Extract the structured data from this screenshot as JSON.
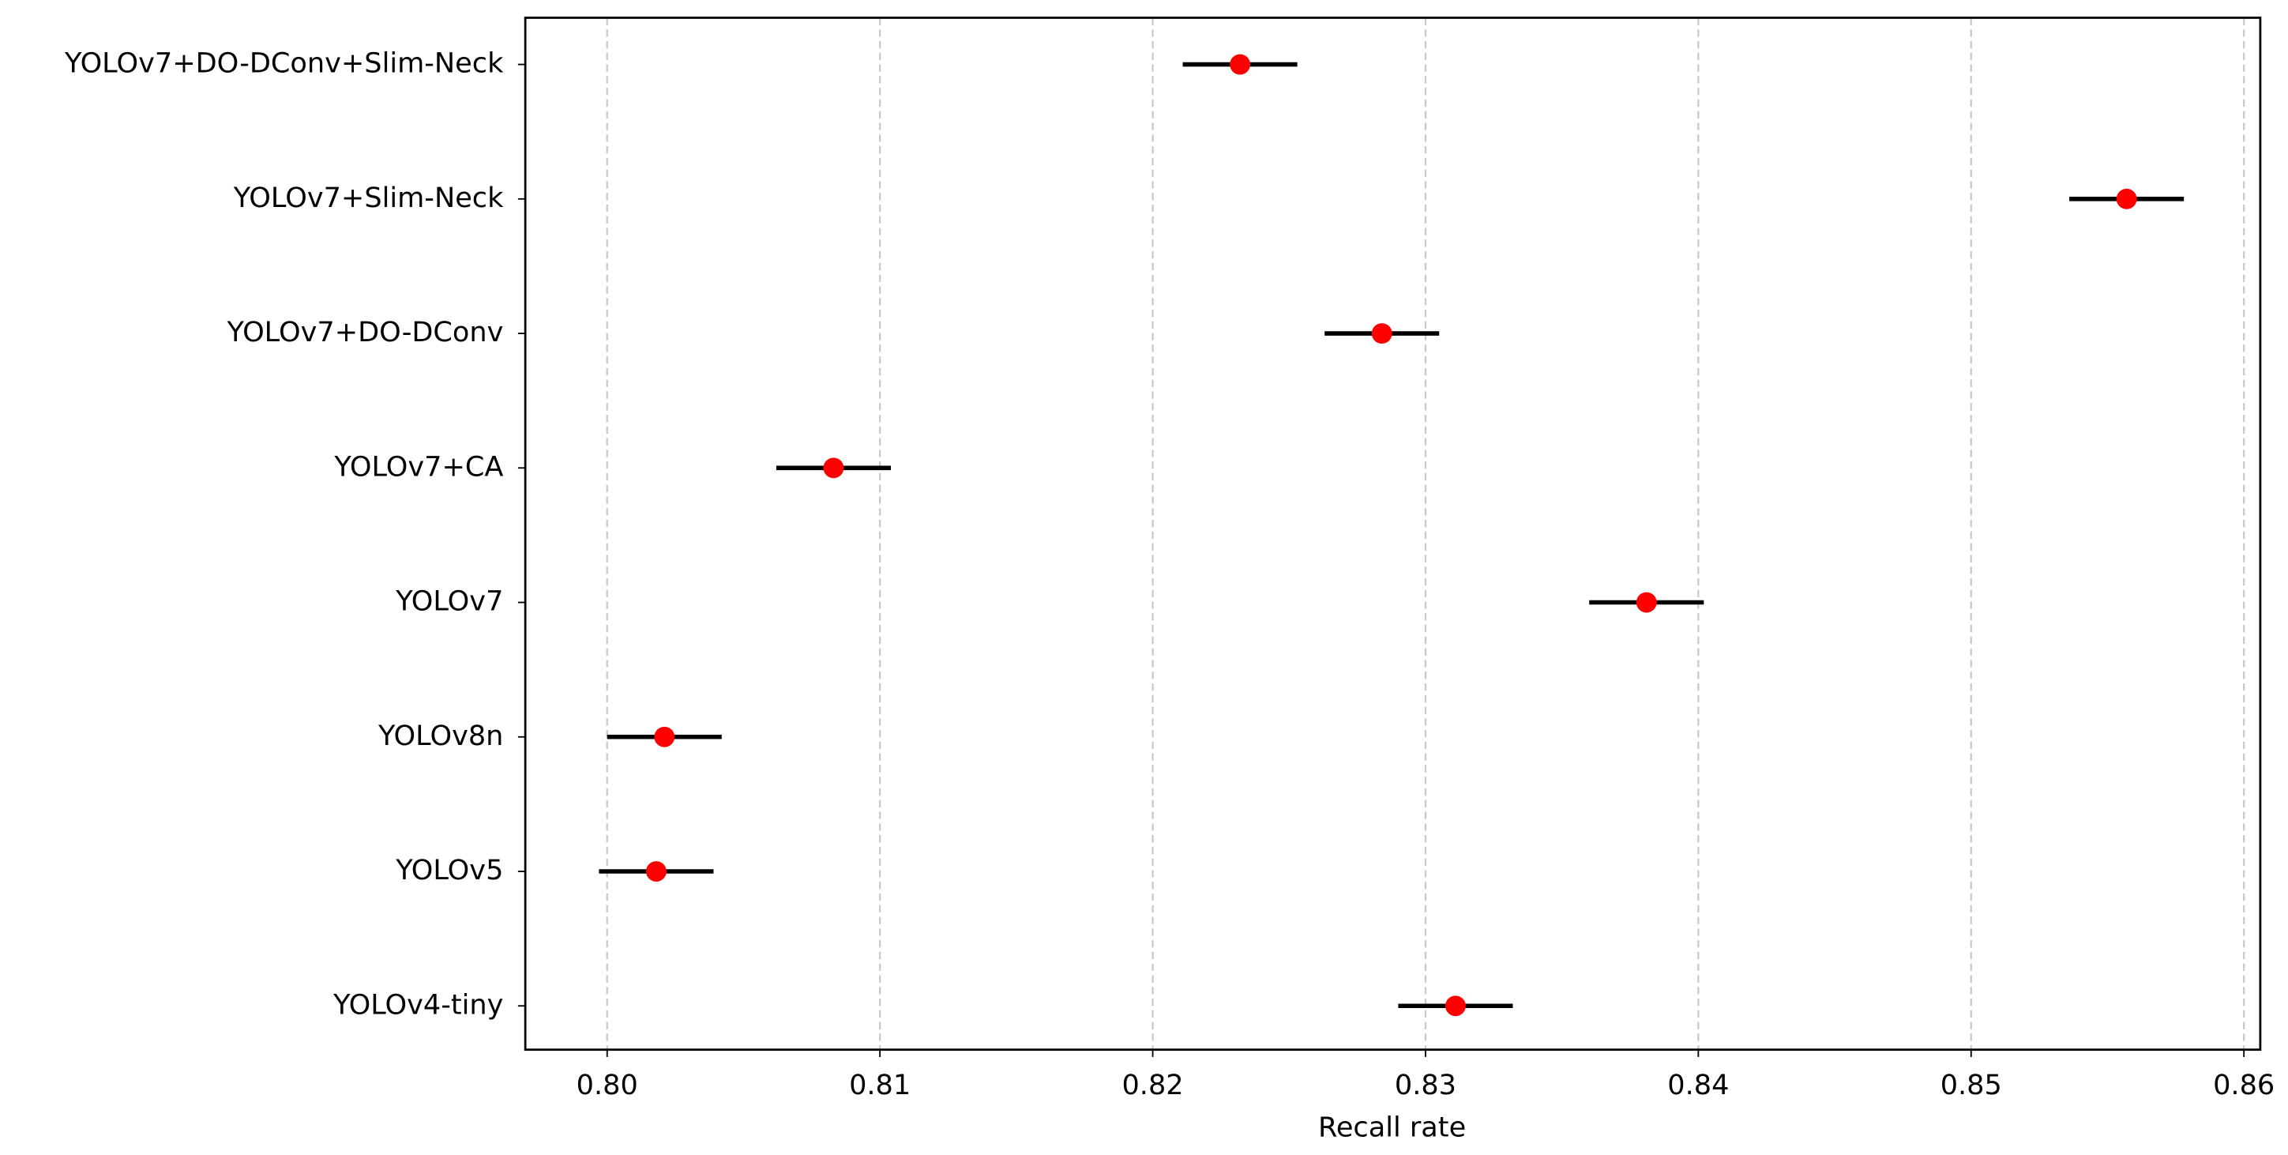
{
  "chart_data": {
    "type": "errorbar",
    "xlabel": "Recall rate",
    "categories": [
      "YOLOv4-tiny",
      "YOLOv5",
      "YOLOv8n",
      "YOLOv7",
      "YOLOv7+CA",
      "YOLOv7+DO-DConv",
      "YOLOv7+Slim-Neck",
      "YOLOv7+DO-DConv+Slim-Neck"
    ],
    "values": [
      0.8311,
      0.8018,
      0.8021,
      0.8381,
      0.8083,
      0.8284,
      0.8557,
      0.8232
    ],
    "errors": [
      0.0021,
      0.0021,
      0.0021,
      0.0021,
      0.0021,
      0.0021,
      0.0021,
      0.0021
    ],
    "color": "#ff0000",
    "error_color": "#000000",
    "xlim": [
      0.797,
      0.8606
    ],
    "xticks": [
      {
        "value": 0.8,
        "label": "0.80"
      },
      0.81,
      0.82,
      0.83,
      0.84,
      0.85,
      0.86
    ],
    "grid": true
  }
}
